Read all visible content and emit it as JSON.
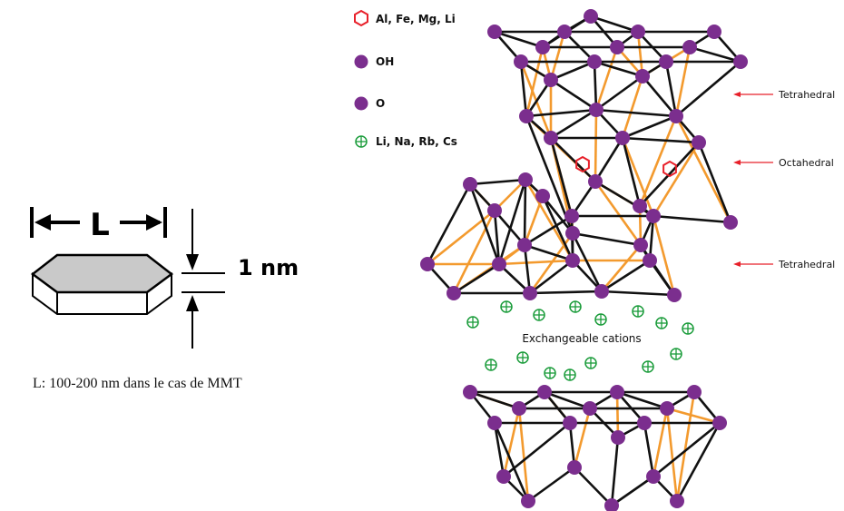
{
  "platelet": {
    "length_label": "L",
    "thickness_label": "1 nm",
    "caption": "L: 100-200 nm dans le cas de MMT"
  },
  "legend": [
    {
      "symbol": "open-hexagon",
      "color": "#e8202a",
      "label": "Al, Fe, Mg, Li"
    },
    {
      "symbol": "filled-circle",
      "color": "#7b2e8e",
      "label": "OH"
    },
    {
      "symbol": "filled-circle",
      "color": "#7b2e8e",
      "label": "O"
    },
    {
      "symbol": "crossed-circle",
      "color": "#1a9c3a",
      "label": "Li, Na, Rb, Cs"
    }
  ],
  "annotations": {
    "tetrahedral_top": "Tetrahedral",
    "octahedral": "Octahedral",
    "tetrahedral_bottom": "Tetrahedral",
    "exchangeable": "Exchangeable cations"
  },
  "colors": {
    "atom": "#7b2e8e",
    "bond_black": "#111111",
    "bond_orange": "#f39a2e",
    "metal": "#e8202a",
    "cation": "#1a9c3a",
    "arrow": "#e8202a",
    "platelet_face": "#c9c9c9"
  },
  "icons": [
    "hexagon-icon",
    "atom-icon",
    "cation-icon",
    "arrow-icon"
  ]
}
